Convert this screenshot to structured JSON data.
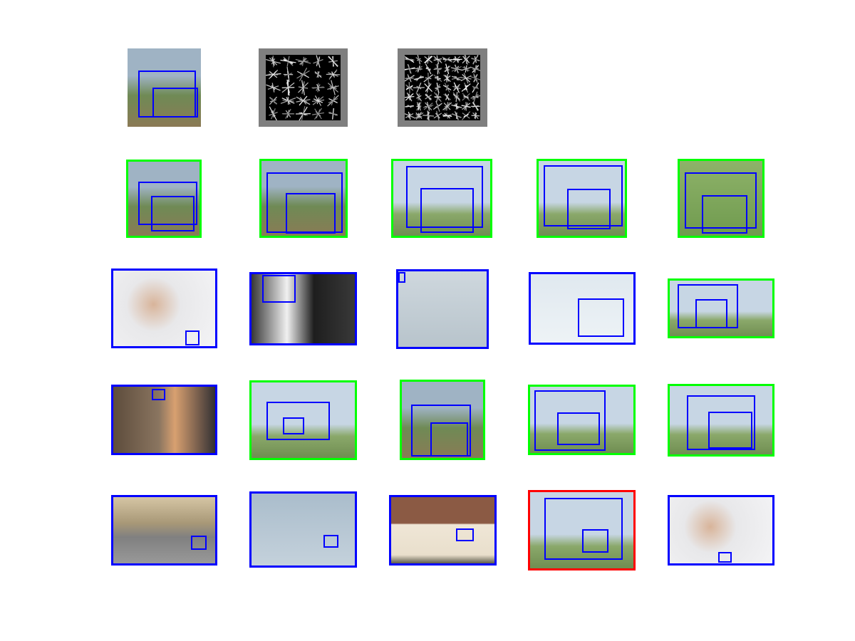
{
  "colors": {
    "query_box": "#0000ff",
    "correct": "#00ff00",
    "incorrect": "#ff0000",
    "neutral": "#0000ff",
    "hog_background": "#7f7f7f"
  },
  "query": {
    "image": "horse-rider-photo",
    "templates": [
      "hog-template-icon",
      "hog-template-icon"
    ]
  },
  "rows": [
    [
      {
        "image": "horse-rider-photo",
        "status": "correct"
      },
      {
        "image": "horse-rider-photo",
        "status": "correct"
      },
      {
        "image": "horse-photo",
        "status": "correct"
      },
      {
        "image": "horse-photo",
        "status": "correct"
      },
      {
        "image": "pinto-horse-photo",
        "status": "correct"
      }
    ],
    [
      {
        "image": "baby-photo",
        "status": "neutral"
      },
      {
        "image": "cow-photo",
        "status": "neutral"
      },
      {
        "image": "bird-photo",
        "status": "neutral"
      },
      {
        "image": "airplane-photo",
        "status": "neutral"
      },
      {
        "image": "horse-photo",
        "status": "correct"
      }
    ],
    [
      {
        "image": "woman-photo",
        "status": "neutral"
      },
      {
        "image": "horse-photo",
        "status": "correct"
      },
      {
        "image": "horse-rider-photo",
        "status": "correct"
      },
      {
        "image": "horse-photo",
        "status": "correct"
      },
      {
        "image": "horse-photo",
        "status": "correct"
      }
    ],
    [
      {
        "image": "road-animals-photo",
        "status": "neutral"
      },
      {
        "image": "owl-photo",
        "status": "neutral"
      },
      {
        "image": "house-photo",
        "status": "neutral"
      },
      {
        "image": "horse-photo",
        "status": "incorrect"
      },
      {
        "image": "baby-photo",
        "status": "neutral"
      }
    ]
  ]
}
